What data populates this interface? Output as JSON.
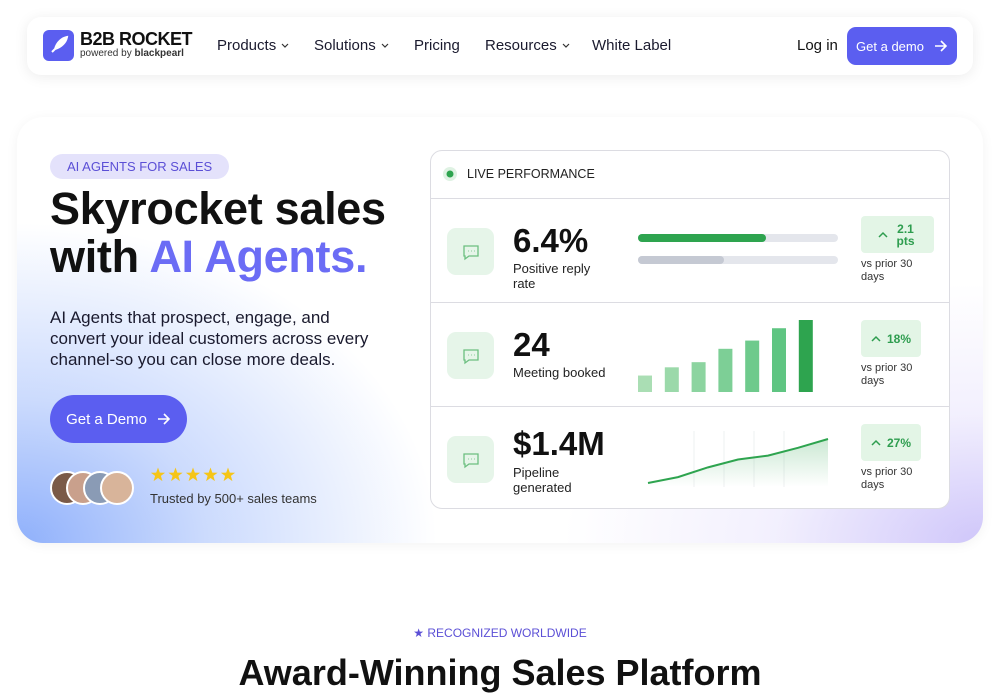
{
  "nav": {
    "logo": {
      "name": "B2B ROCKET",
      "tagline_prefix": "powered by",
      "tagline_brand": "blackpearl"
    },
    "links": [
      "Products",
      "Solutions",
      "Pricing",
      "Resources",
      "White Label"
    ],
    "login": "Log in",
    "cta": "Get a demo"
  },
  "hero": {
    "badge": "AI AGENTS FOR SALES",
    "title": [
      "Skyrocket sales",
      "with",
      "AI Agents."
    ],
    "description": "AI Agents that prospect, engage, and convert your ideal customers across every channel-so you can close more deals.",
    "cta": "Get a Demo",
    "rating_stars": 5,
    "trust": "Trusted by 500+ sales teams"
  },
  "panel": {
    "header": "LIVE PERFORMANCE",
    "metrics": [
      {
        "value": "6.4%",
        "label": "Positive reply rate",
        "change": "2.1 pts",
        "note": "vs prior 30 days",
        "chart": {
          "type": "progress",
          "values": [
            64,
            43
          ]
        }
      },
      {
        "value": "24",
        "label": "Meeting booked",
        "change": "18%",
        "note": "vs prior 30 days",
        "chart": {
          "type": "bar",
          "values": [
            16,
            24,
            29,
            42,
            50,
            62,
            70
          ]
        }
      },
      {
        "value": "$1.4M",
        "label": "Pipeline generated",
        "change": "27%",
        "note": "vs prior 30 days",
        "chart": {
          "type": "line",
          "values": [
            0,
            6,
            16,
            24,
            28,
            36,
            45
          ]
        }
      }
    ]
  },
  "section": {
    "eyebrow": "★ RECOGNIZED WORLDWIDE",
    "title": "Award-Winning Sales Platform"
  }
}
